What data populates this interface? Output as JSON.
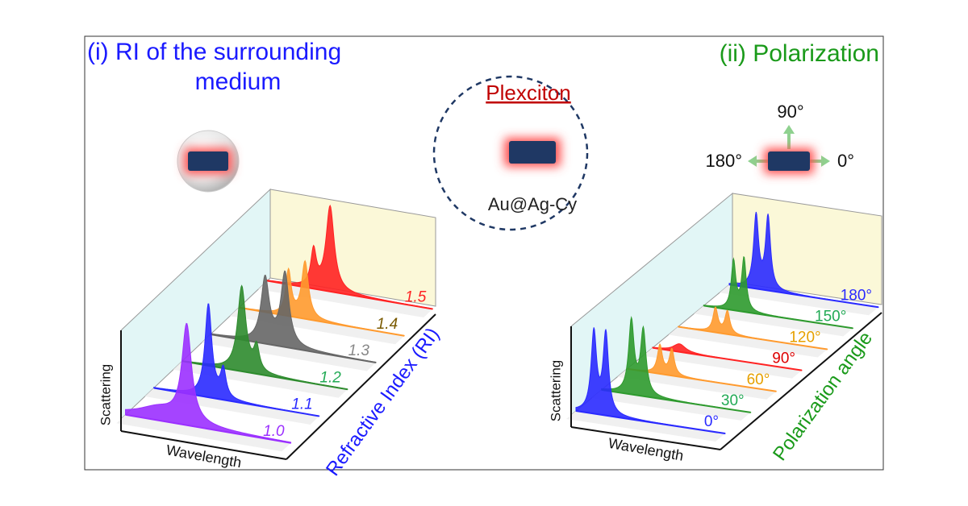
{
  "left_panel": {
    "title": [
      "(i) RI of the surrounding",
      "medium"
    ],
    "series_labels": [
      "1.0",
      "1.1",
      "1.2",
      "1.3",
      "1.4",
      "1.5"
    ],
    "axis_labels": {
      "y": "Scattering",
      "x": "Wavelength",
      "depth": "Refractive Index (RI)"
    }
  },
  "center": {
    "title": "Plexciton",
    "label": "Au@Ag-Cy"
  },
  "right_panel": {
    "title": "(ii) Polarization",
    "directions": [
      "90°",
      "180°",
      "0°"
    ],
    "series_labels": [
      "0°",
      "30°",
      "60°",
      "90°",
      "120°",
      "150°",
      "180°"
    ],
    "axis_labels": {
      "y": "Scattering",
      "x": "Wavelength",
      "depth": "Polarization angle"
    }
  }
}
